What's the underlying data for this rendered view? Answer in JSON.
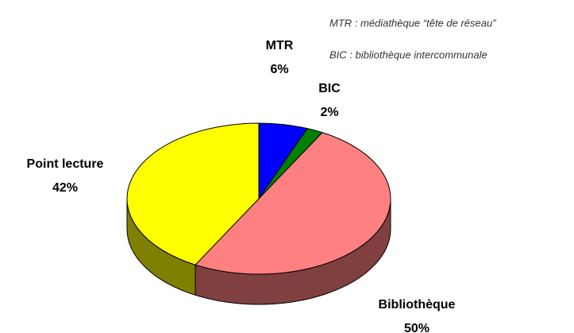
{
  "chart_data": {
    "type": "pie",
    "categories": [
      "MTR",
      "BIC",
      "Bibliothèque",
      "Point lecture"
    ],
    "values": [
      6,
      2,
      50,
      42
    ],
    "value_labels": [
      "6%",
      "2%",
      "50%",
      "42%"
    ],
    "colors": [
      "#0000ff",
      "#008000",
      "#ff8080",
      "#ffff00"
    ],
    "annotations": [
      "MTR : médiathèque “tête de réseau”",
      "BIC : bibliothèque intercommunale"
    ]
  }
}
